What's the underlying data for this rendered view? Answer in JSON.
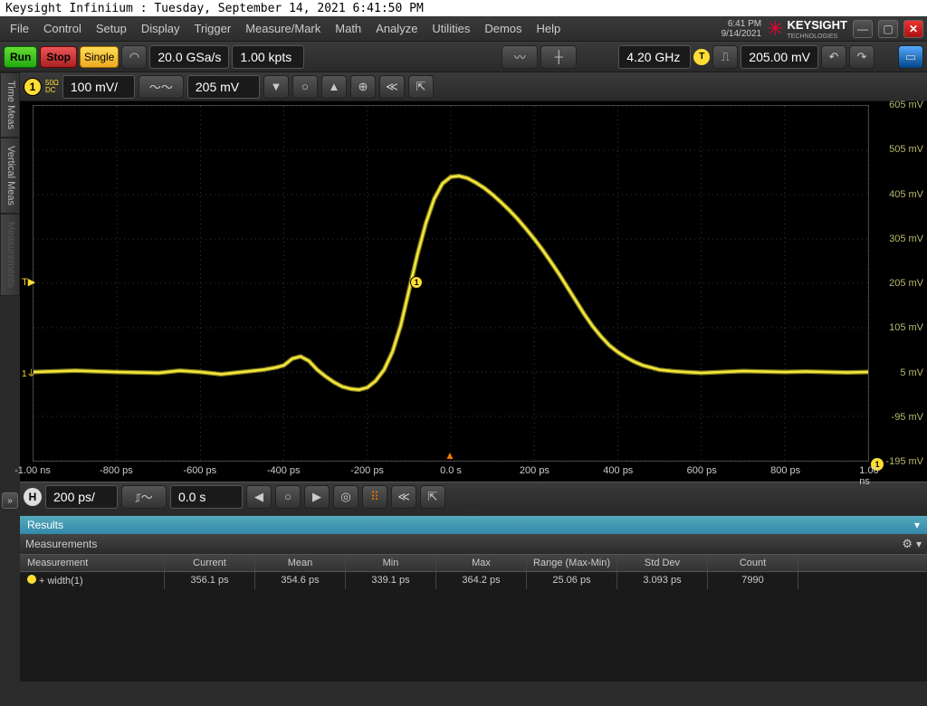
{
  "os_title": "Keysight Infiniium : Tuesday, September 14, 2021 6:41:50 PM",
  "clock": {
    "time": "6:41 PM",
    "date": "9/14/2021"
  },
  "brand": {
    "name": "KEYSIGHT",
    "sub": "TECHNOLOGIES"
  },
  "menus": [
    "File",
    "Control",
    "Setup",
    "Display",
    "Trigger",
    "Measure/Mark",
    "Math",
    "Analyze",
    "Utilities",
    "Demos",
    "Help"
  ],
  "toolbar": {
    "run": "Run",
    "stop": "Stop",
    "single": "Single",
    "sample_rate": "20.0 GSa/s",
    "mem_depth": "1.00 kpts",
    "bandwidth": "4.20 GHz",
    "trig_badge": "T",
    "trig_level": "205.00 mV"
  },
  "channel": {
    "num": "1",
    "impedance_top": "50Ω",
    "impedance_bot": "DC",
    "scale": "100 mV/",
    "offset": "205 mV"
  },
  "left_tabs": [
    "Time Meas",
    "Vertical Meas",
    "Measurements"
  ],
  "timebase": {
    "badge": "H",
    "scale": "200 ps/",
    "delay": "0.0 s"
  },
  "results": {
    "title": "Results",
    "meas_title": "Measurements"
  },
  "table": {
    "columns": [
      "Measurement",
      "Current",
      "Mean",
      "Min",
      "Max",
      "Range (Max-Min)",
      "Std Dev",
      "Count"
    ],
    "row": {
      "name": "+ width(1)",
      "current": "356.1 ps",
      "mean": "354.6 ps",
      "min": "339.1 ps",
      "max": "364.2 ps",
      "range": "25.06 ps",
      "stddev": "3.093 ps",
      "count": "7990"
    }
  },
  "waveform": {
    "trace_color": "#f5e83a",
    "grid_color": "#3a3a3a",
    "bg": "#000000",
    "x_ticks": [
      "-1.00 ns",
      "-800 ps",
      "-600 ps",
      "-400 ps",
      "-200 ps",
      "0.0 s",
      "200 ps",
      "400 ps",
      "600 ps",
      "800 ps",
      "1.00 ns"
    ],
    "y_ticks": [
      "605 mV",
      "505 mV",
      "405 mV",
      "305 mV",
      "205 mV",
      "105 mV",
      "5 mV",
      "-95 mV",
      "-195 mV"
    ],
    "y_color": "#b8b870",
    "xlim": [
      -1000,
      1000
    ],
    "ylim": [
      -195,
      605
    ],
    "trigger_level_mv": 205,
    "ground_level_mv": 5,
    "points": [
      [
        -1000,
        5
      ],
      [
        -900,
        8
      ],
      [
        -800,
        5
      ],
      [
        -700,
        3
      ],
      [
        -650,
        8
      ],
      [
        -600,
        5
      ],
      [
        -550,
        0
      ],
      [
        -500,
        5
      ],
      [
        -450,
        10
      ],
      [
        -420,
        15
      ],
      [
        -400,
        20
      ],
      [
        -380,
        35
      ],
      [
        -360,
        40
      ],
      [
        -340,
        30
      ],
      [
        -320,
        10
      ],
      [
        -300,
        -5
      ],
      [
        -280,
        -18
      ],
      [
        -260,
        -28
      ],
      [
        -240,
        -33
      ],
      [
        -220,
        -35
      ],
      [
        -200,
        -30
      ],
      [
        -180,
        -15
      ],
      [
        -160,
        10
      ],
      [
        -140,
        50
      ],
      [
        -120,
        110
      ],
      [
        -100,
        190
      ],
      [
        -80,
        270
      ],
      [
        -60,
        340
      ],
      [
        -40,
        395
      ],
      [
        -20,
        430
      ],
      [
        0,
        445
      ],
      [
        20,
        447
      ],
      [
        40,
        442
      ],
      [
        60,
        432
      ],
      [
        80,
        420
      ],
      [
        100,
        405
      ],
      [
        120,
        388
      ],
      [
        140,
        370
      ],
      [
        160,
        350
      ],
      [
        180,
        328
      ],
      [
        200,
        305
      ],
      [
        220,
        280
      ],
      [
        240,
        253
      ],
      [
        260,
        225
      ],
      [
        280,
        195
      ],
      [
        300,
        165
      ],
      [
        320,
        135
      ],
      [
        340,
        108
      ],
      [
        360,
        85
      ],
      [
        380,
        65
      ],
      [
        400,
        50
      ],
      [
        420,
        38
      ],
      [
        440,
        28
      ],
      [
        460,
        20
      ],
      [
        480,
        15
      ],
      [
        500,
        10
      ],
      [
        530,
        7
      ],
      [
        560,
        5
      ],
      [
        600,
        3
      ],
      [
        650,
        5
      ],
      [
        700,
        7
      ],
      [
        750,
        6
      ],
      [
        800,
        5
      ],
      [
        850,
        6
      ],
      [
        900,
        5
      ],
      [
        950,
        4
      ],
      [
        1000,
        5
      ]
    ]
  }
}
